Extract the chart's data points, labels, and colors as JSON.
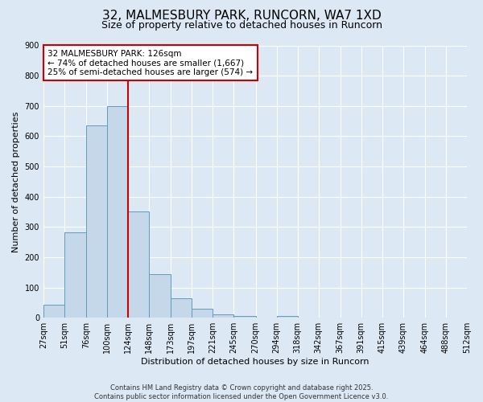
{
  "title": "32, MALMESBURY PARK, RUNCORN, WA7 1XD",
  "subtitle": "Size of property relative to detached houses in Runcorn",
  "xlabel": "Distribution of detached houses by size in Runcorn",
  "ylabel": "Number of detached properties",
  "bin_labels": [
    "27sqm",
    "51sqm",
    "76sqm",
    "100sqm",
    "124sqm",
    "148sqm",
    "173sqm",
    "197sqm",
    "221sqm",
    "245sqm",
    "270sqm",
    "294sqm",
    "318sqm",
    "342sqm",
    "367sqm",
    "391sqm",
    "415sqm",
    "439sqm",
    "464sqm",
    "488sqm",
    "512sqm"
  ],
  "bin_left_edges": [
    27,
    51,
    76,
    100,
    124,
    148,
    173,
    197,
    221,
    245,
    270,
    294,
    318,
    342,
    367,
    391,
    415,
    439,
    464,
    488
  ],
  "bar_heights": [
    43,
    283,
    635,
    700,
    350,
    145,
    63,
    30,
    10,
    5,
    0,
    5,
    0,
    0,
    0,
    0,
    0,
    0,
    0,
    0
  ],
  "bar_color": "#c5d8ea",
  "bar_edge_color": "#6699bb",
  "vline_x": 124,
  "vline_color": "#cc0000",
  "annotation_text": "32 MALMESBURY PARK: 126sqm\n← 74% of detached houses are smaller (1,667)\n25% of semi-detached houses are larger (574) →",
  "annotation_box_facecolor": "#ffffff",
  "annotation_box_edgecolor": "#cc0000",
  "ylim": [
    0,
    900
  ],
  "yticks": [
    0,
    100,
    200,
    300,
    400,
    500,
    600,
    700,
    800,
    900
  ],
  "xlim_left": 27,
  "xlim_right": 512,
  "background_color": "#dce8f4",
  "grid_color": "#ffffff",
  "footer_line1": "Contains HM Land Registry data © Crown copyright and database right 2025.",
  "footer_line2": "Contains public sector information licensed under the Open Government Licence v3.0.",
  "title_fontsize": 11,
  "subtitle_fontsize": 9,
  "ylabel_fontsize": 8,
  "xlabel_fontsize": 8,
  "tick_fontsize": 7,
  "annot_fontsize": 7.5,
  "footer_fontsize": 6
}
